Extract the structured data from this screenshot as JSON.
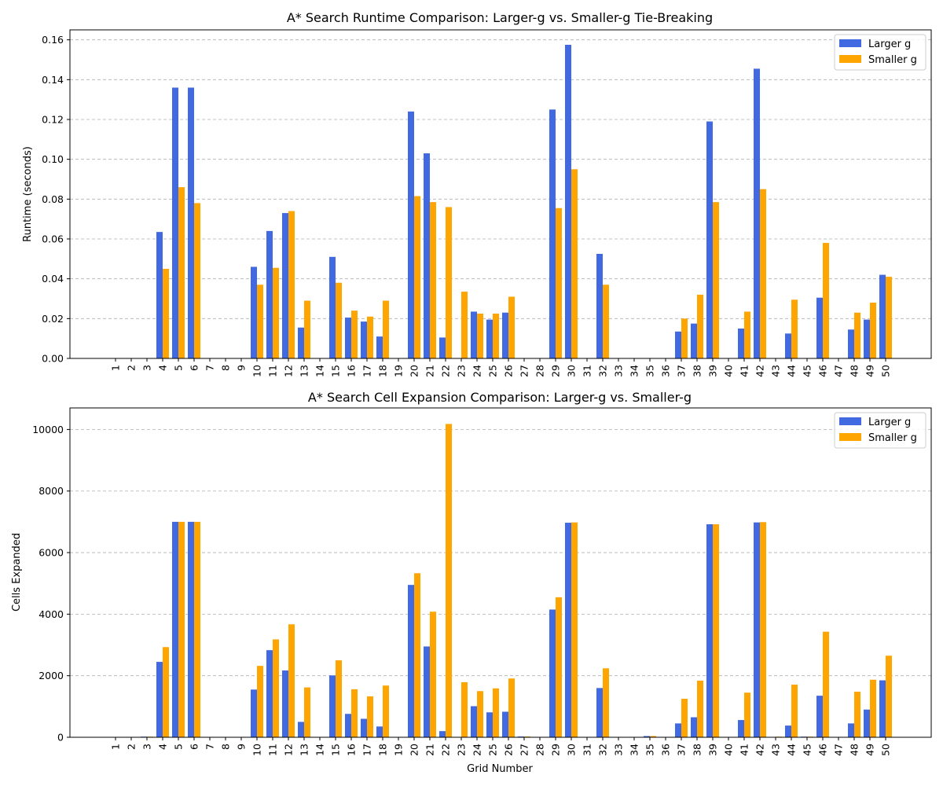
{
  "colors": {
    "larger_g": "#4169E1",
    "smaller_g": "#FFA500",
    "grid": "#b0b0b0"
  },
  "chart_data": [
    {
      "type": "bar",
      "title": "A* Search Runtime Comparison: Larger-g vs. Smaller-g Tie-Breaking",
      "xlabel": "",
      "ylabel": "Runtime (seconds)",
      "ylim": [
        0,
        0.165
      ],
      "yticks": [
        0.0,
        0.02,
        0.04,
        0.06,
        0.08,
        0.1,
        0.12,
        0.14,
        0.16
      ],
      "ytick_labels": [
        "0.00",
        "0.02",
        "0.04",
        "0.06",
        "0.08",
        "0.10",
        "0.12",
        "0.14",
        "0.16"
      ],
      "grid": "horizontal-dashed",
      "legend_position": "top-right",
      "categories": [
        "1",
        "2",
        "3",
        "4",
        "5",
        "6",
        "7",
        "8",
        "9",
        "10",
        "11",
        "12",
        "13",
        "14",
        "15",
        "16",
        "17",
        "18",
        "19",
        "20",
        "21",
        "22",
        "23",
        "24",
        "25",
        "26",
        "27",
        "28",
        "29",
        "30",
        "31",
        "32",
        "33",
        "34",
        "35",
        "36",
        "37",
        "38",
        "39",
        "40",
        "41",
        "42",
        "43",
        "44",
        "45",
        "46",
        "47",
        "48",
        "49",
        "50"
      ],
      "series": [
        {
          "name": "Larger g",
          "values": [
            0,
            0,
            0,
            0.0635,
            0.136,
            0.136,
            0,
            0,
            0,
            0.046,
            0.064,
            0.073,
            0.0155,
            0,
            0.051,
            0.0205,
            0.0185,
            0.011,
            0,
            0.124,
            0.103,
            0.0105,
            0,
            0.0235,
            0.0195,
            0.023,
            0,
            0,
            0.125,
            0.1575,
            0,
            0.0525,
            0,
            0,
            0,
            0,
            0.0135,
            0.0175,
            0.119,
            0,
            0.015,
            0.1455,
            0,
            0.0125,
            0,
            0.0305,
            0,
            0.0145,
            0.0195,
            0.042
          ]
        },
        {
          "name": "Smaller g",
          "values": [
            0,
            0,
            0,
            0.045,
            0.086,
            0.078,
            0,
            0,
            0,
            0.037,
            0.0455,
            0.074,
            0.029,
            0,
            0.038,
            0.024,
            0.021,
            0.029,
            0,
            0.0815,
            0.0785,
            0.076,
            0.0335,
            0.0225,
            0.0225,
            0.031,
            0,
            0,
            0.0755,
            0.095,
            0,
            0.037,
            0,
            0,
            0,
            0,
            0.02,
            0.032,
            0.0785,
            0,
            0.0235,
            0.085,
            0,
            0.0295,
            0,
            0.058,
            0,
            0.023,
            0.028,
            0.041
          ]
        }
      ]
    },
    {
      "type": "bar",
      "title": "A* Search Cell Expansion Comparison: Larger-g vs. Smaller-g",
      "xlabel": "Grid Number",
      "ylabel": "Cells Expanded",
      "ylim": [
        0,
        10700
      ],
      "yticks": [
        0,
        2000,
        4000,
        6000,
        8000,
        10000
      ],
      "ytick_labels": [
        "0",
        "2000",
        "4000",
        "6000",
        "8000",
        "10000"
      ],
      "grid": "horizontal-dashed",
      "legend_position": "top-right",
      "categories": [
        "1",
        "2",
        "3",
        "4",
        "5",
        "6",
        "7",
        "8",
        "9",
        "10",
        "11",
        "12",
        "13",
        "14",
        "15",
        "16",
        "17",
        "18",
        "19",
        "20",
        "21",
        "22",
        "23",
        "24",
        "25",
        "26",
        "27",
        "28",
        "29",
        "30",
        "31",
        "32",
        "33",
        "34",
        "35",
        "36",
        "37",
        "38",
        "39",
        "40",
        "41",
        "42",
        "43",
        "44",
        "45",
        "46",
        "47",
        "48",
        "49",
        "50"
      ],
      "series": [
        {
          "name": "Larger g",
          "values": [
            5,
            5,
            20,
            2450,
            7000,
            7000,
            5,
            5,
            5,
            1550,
            2830,
            2170,
            500,
            5,
            2010,
            760,
            600,
            350,
            5,
            4950,
            2950,
            200,
            5,
            1010,
            810,
            830,
            25,
            5,
            4150,
            6970,
            5,
            1600,
            5,
            5,
            40,
            5,
            450,
            650,
            6920,
            5,
            560,
            6980,
            5,
            380,
            20,
            1350,
            5,
            450,
            900,
            1850
          ]
        },
        {
          "name": "Smaller g",
          "values": [
            5,
            5,
            20,
            2930,
            7000,
            7000,
            5,
            5,
            5,
            2320,
            3180,
            3670,
            1620,
            5,
            2500,
            1560,
            1330,
            1680,
            5,
            5330,
            4080,
            10180,
            1790,
            1500,
            1590,
            1910,
            25,
            5,
            4550,
            6980,
            5,
            2240,
            5,
            5,
            40,
            5,
            1250,
            1840,
            6920,
            5,
            1450,
            6990,
            20,
            1710,
            20,
            3430,
            5,
            1480,
            1870,
            2650
          ]
        }
      ]
    }
  ]
}
